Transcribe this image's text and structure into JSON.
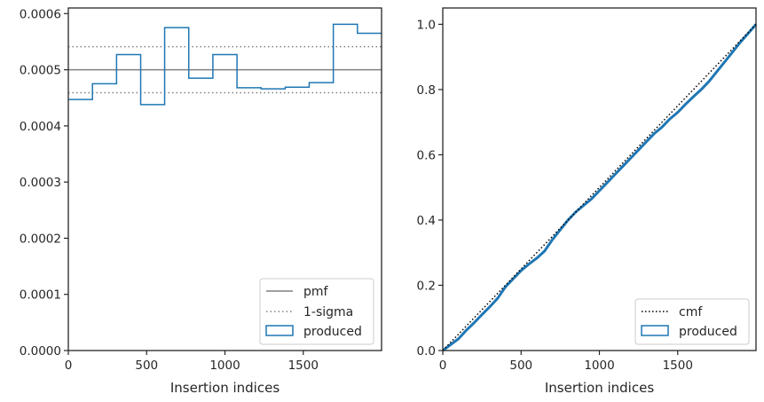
{
  "chart_data": [
    {
      "type": "histogram",
      "xlabel": "Insertion indices",
      "ylabel": "",
      "xlim": [
        0,
        2000
      ],
      "ylim": [
        0,
        0.00061
      ],
      "xticks": [
        0,
        500,
        1000,
        1500
      ],
      "xtick_labels": [
        "0",
        "500",
        "1000",
        "1500"
      ],
      "yticks": [
        0,
        0.0001,
        0.0002,
        0.0003,
        0.0004,
        0.0005,
        0.0006
      ],
      "ytick_labels": [
        "0.0000",
        "0.0001",
        "0.0002",
        "0.0003",
        "0.0004",
        "0.0005",
        "0.0006"
      ],
      "bin_edges": [
        0,
        154,
        308,
        462,
        615,
        769,
        923,
        1077,
        1231,
        1385,
        1538,
        1692,
        1846,
        2000
      ],
      "produced": [
        0.000447,
        0.000475,
        0.000527,
        0.000438,
        0.000575,
        0.000485,
        0.000527,
        0.000468,
        0.000466,
        0.000469,
        0.000477,
        0.000581,
        0.000565
      ],
      "pmf": 0.0005,
      "sigma_band": [
        0.000459,
        0.000541
      ],
      "legend": [
        "pmf",
        "1-sigma",
        "produced"
      ],
      "legend_location": "lower-right",
      "colors": {
        "pmf": "#808080",
        "sigma": "#808080",
        "produced": "#1f77b4"
      }
    },
    {
      "type": "line",
      "xlabel": "Insertion indices",
      "ylabel": "",
      "xlim": [
        0,
        2000
      ],
      "ylim": [
        0,
        1.05
      ],
      "xticks": [
        0,
        500,
        1000,
        1500
      ],
      "xtick_labels": [
        "0",
        "500",
        "1000",
        "1500"
      ],
      "yticks": [
        0,
        0.2,
        0.4,
        0.6,
        0.8,
        1.0
      ],
      "ytick_labels": [
        "0.0",
        "0.2",
        "0.4",
        "0.6",
        "0.8",
        "1.0"
      ],
      "cmf": {
        "x": [
          0,
          2000
        ],
        "y": [
          0,
          1.0
        ]
      },
      "produced": {
        "x": [
          0,
          50,
          100,
          150,
          200,
          250,
          300,
          350,
          400,
          450,
          500,
          550,
          600,
          650,
          700,
          750,
          800,
          850,
          900,
          950,
          1000,
          1050,
          1100,
          1150,
          1200,
          1250,
          1300,
          1350,
          1400,
          1450,
          1500,
          1550,
          1600,
          1650,
          1700,
          1750,
          1800,
          1850,
          1900,
          1950,
          2000
        ],
        "y": [
          0,
          0.018,
          0.036,
          0.062,
          0.085,
          0.11,
          0.134,
          0.16,
          0.195,
          0.22,
          0.245,
          0.265,
          0.283,
          0.305,
          0.34,
          0.37,
          0.4,
          0.425,
          0.445,
          0.465,
          0.49,
          0.515,
          0.54,
          0.565,
          0.59,
          0.615,
          0.64,
          0.665,
          0.685,
          0.71,
          0.73,
          0.755,
          0.778,
          0.8,
          0.825,
          0.855,
          0.885,
          0.915,
          0.945,
          0.972,
          1.0
        ]
      },
      "legend": [
        "cmf",
        "produced"
      ],
      "legend_location": "lower-right",
      "colors": {
        "cmf": "#000000",
        "produced": "#1f77b4"
      }
    }
  ]
}
